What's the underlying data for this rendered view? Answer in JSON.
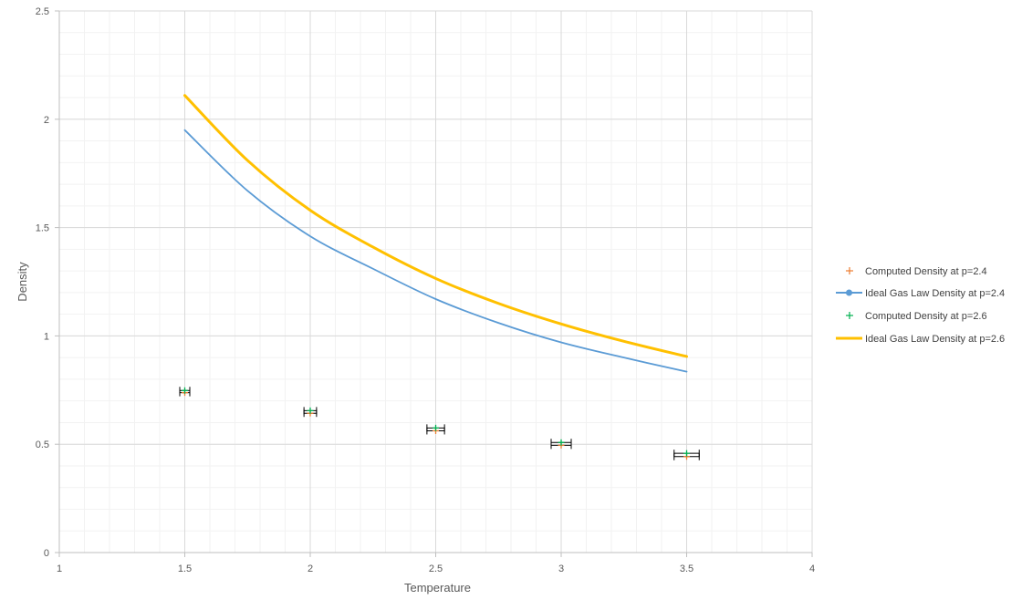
{
  "chart_data": {
    "type": "scatter",
    "xlabel": "Temperature",
    "ylabel": "Density",
    "xlim": [
      1,
      4
    ],
    "ylim": [
      0,
      2.5
    ],
    "x_ticks": [
      "1",
      "1.5",
      "2",
      "2.5",
      "3",
      "3.5",
      "4"
    ],
    "y_ticks": [
      "0",
      "0.5",
      "1",
      "1.5",
      "2",
      "2.5"
    ],
    "x_tick_values": [
      1,
      1.5,
      2,
      2.5,
      3,
      3.5,
      4
    ],
    "y_tick_values": [
      0,
      0.5,
      1,
      1.5,
      2,
      2.5
    ],
    "grid": true,
    "minor_grid": true,
    "legend_position": "right",
    "series": [
      {
        "name": "Computed Density at p=2.4",
        "kind": "points",
        "marker": "plus",
        "color": "#ed7d31",
        "x": [
          1.5,
          2.0,
          2.5,
          3.0,
          3.5
        ],
        "y": [
          0.738,
          0.643,
          0.562,
          0.495,
          0.443
        ],
        "x_error": [
          0.02,
          0.025,
          0.035,
          0.04,
          0.05
        ]
      },
      {
        "name": "Ideal Gas Law Density at p=2.4",
        "kind": "line",
        "color": "#5b9bd5",
        "x": [
          1.5,
          1.75,
          2.0,
          2.25,
          2.5,
          2.75,
          3.0,
          3.25,
          3.5
        ],
        "y": [
          1.95,
          1.67,
          1.46,
          1.31,
          1.17,
          1.06,
          0.97,
          0.9,
          0.835
        ]
      },
      {
        "name": "Computed Density at p=2.6",
        "kind": "points",
        "marker": "plus",
        "color": "#00b050",
        "x": [
          1.5,
          2.0,
          2.5,
          3.0,
          3.5
        ],
        "y": [
          0.748,
          0.655,
          0.575,
          0.508,
          0.458
        ],
        "x_error": [
          0.02,
          0.025,
          0.035,
          0.04,
          0.05
        ]
      },
      {
        "name": "Ideal Gas Law Density at p=2.6",
        "kind": "line",
        "color": "#ffc000",
        "x": [
          1.5,
          1.75,
          2.0,
          2.25,
          2.5,
          2.75,
          3.0,
          3.25,
          3.5
        ],
        "y": [
          2.11,
          1.81,
          1.58,
          1.41,
          1.265,
          1.15,
          1.055,
          0.975,
          0.905
        ]
      }
    ]
  }
}
